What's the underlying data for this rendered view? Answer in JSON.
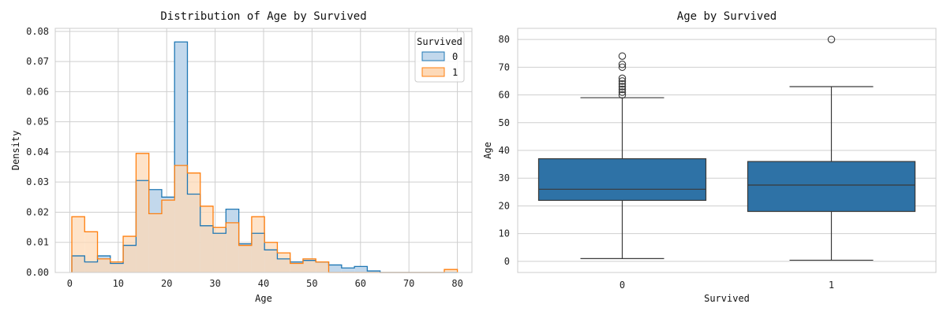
{
  "chart_data": [
    {
      "type": "histogram",
      "title": "Distribution of Age by Survived",
      "xlabel": "Age",
      "ylabel": "Density",
      "xlim": [
        -3,
        83
      ],
      "ylim": [
        0,
        0.081
      ],
      "xticks": [
        0,
        10,
        20,
        30,
        40,
        50,
        60,
        70,
        80
      ],
      "yticks": [
        "0.00",
        "0.01",
        "0.02",
        "0.03",
        "0.04",
        "0.05",
        "0.06",
        "0.07",
        "0.08"
      ],
      "grid": true,
      "bin_edges": [
        0.42,
        3.07,
        5.72,
        8.37,
        11.02,
        13.68,
        16.33,
        18.98,
        21.63,
        24.28,
        26.93,
        29.58,
        32.23,
        34.89,
        37.54,
        40.19,
        42.84,
        45.49,
        48.14,
        50.79,
        53.44,
        56.1,
        58.75,
        61.4,
        64.05,
        66.7,
        69.35,
        72.0,
        74.65,
        77.3,
        80.0
      ],
      "legend": {
        "title": "Survived",
        "position": "top-right"
      },
      "series": [
        {
          "name": "0",
          "color": "#1f77b4",
          "fill": "#c2d8ec",
          "values": [
            0.0055,
            0.0035,
            0.0055,
            0.003,
            0.009,
            0.0305,
            0.0275,
            0.025,
            0.0765,
            0.026,
            0.0155,
            0.013,
            0.021,
            0.0095,
            0.013,
            0.0075,
            0.0045,
            0.0035,
            0.004,
            0.0035,
            0.0025,
            0.0015,
            0.002,
            0.0005,
            0.0,
            0.0,
            0.0,
            0.0,
            0.0,
            0.0
          ]
        },
        {
          "name": "1",
          "color": "#ff7f0e",
          "fill": "#fdd9b7",
          "values": [
            0.0185,
            0.0135,
            0.0045,
            0.0035,
            0.012,
            0.0395,
            0.0195,
            0.024,
            0.0355,
            0.033,
            0.022,
            0.015,
            0.0165,
            0.009,
            0.0185,
            0.01,
            0.0065,
            0.003,
            0.0045,
            0.0035,
            0.0,
            0.0,
            0.0,
            0.0,
            0.0,
            0.0,
            0.0,
            0.0,
            0.0,
            0.001
          ]
        }
      ]
    },
    {
      "type": "box",
      "title": "Age by Survived",
      "xlabel": "Survived",
      "ylabel": "Age",
      "categories": [
        "0",
        "1"
      ],
      "ylim": [
        -4,
        84
      ],
      "yticks": [
        0,
        10,
        20,
        30,
        40,
        50,
        60,
        70,
        80
      ],
      "grid": true,
      "color": "#2e72a6",
      "boxes": [
        {
          "category": "0",
          "whisker_low": 1,
          "q1": 22,
          "median": 26,
          "q3": 37,
          "whisker_high": 59,
          "outliers": [
            60,
            61,
            62,
            63,
            64,
            65,
            66,
            70,
            71,
            74
          ]
        },
        {
          "category": "1",
          "whisker_low": 0.42,
          "q1": 18,
          "median": 27.5,
          "q3": 36,
          "whisker_high": 63,
          "outliers": [
            80
          ]
        }
      ]
    }
  ]
}
